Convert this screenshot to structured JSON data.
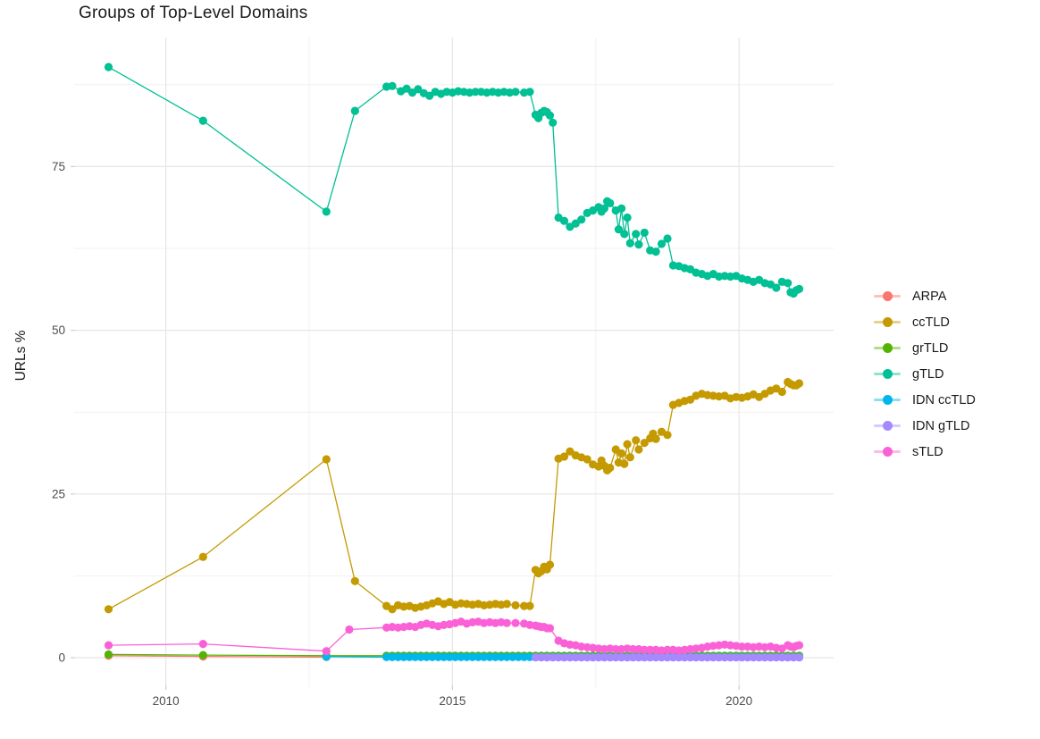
{
  "page": {
    "background": "#ffffff"
  },
  "chart_data": {
    "type": "line",
    "title": "Groups of Top-Level Domains",
    "xlabel": "",
    "ylabel": "URLs %",
    "xlim": [
      2008.4,
      2021.65
    ],
    "ylim": [
      -4.5,
      94.7
    ],
    "x_ticks": [
      {
        "value": 2010,
        "label": "2010"
      },
      {
        "value": 2015,
        "label": "2015"
      },
      {
        "value": 2020,
        "label": "2020"
      }
    ],
    "x_minor": [
      2012.5,
      2017.5
    ],
    "y_ticks": [
      {
        "value": 0,
        "label": "0"
      },
      {
        "value": 25,
        "label": "25"
      },
      {
        "value": 50,
        "label": "50"
      },
      {
        "value": 75,
        "label": "75"
      }
    ],
    "y_minor": [
      12.5,
      37.5,
      62.5,
      87.5
    ],
    "grid": {
      "on": true,
      "major_color": "#e6e6e6",
      "minor_color": "#f1f1f1",
      "tick_color": "#cfcfcf"
    },
    "text_colors": {
      "title": "#1a1a1a",
      "ticks": "#4d4d4d",
      "axis_title": "#1a1a1a",
      "legend": "#1a1a1a"
    },
    "legend": {
      "position": "right",
      "title": ""
    },
    "series": [
      {
        "name": "ARPA",
        "color": "#F8766D",
        "points": [
          [
            2009,
            0.3
          ],
          [
            2010.65,
            0.2
          ],
          [
            2012.8,
            0.1
          ]
        ]
      },
      {
        "name": "ccTLD",
        "color": "#C49A00",
        "points": [
          [
            2009,
            7.4
          ],
          [
            2010.65,
            15.4
          ],
          [
            2012.8,
            30.3
          ],
          [
            2013.3,
            11.7
          ],
          [
            2013.85,
            7.9
          ],
          [
            2013.95,
            7.4
          ],
          [
            2014.05,
            8
          ],
          [
            2014.15,
            7.8
          ],
          [
            2014.25,
            7.9
          ],
          [
            2014.35,
            7.6
          ],
          [
            2014.45,
            7.8
          ],
          [
            2014.55,
            8
          ],
          [
            2014.65,
            8.3
          ],
          [
            2014.75,
            8.6
          ],
          [
            2014.85,
            8.2
          ],
          [
            2014.95,
            8.5
          ],
          [
            2015.05,
            8.1
          ],
          [
            2015.15,
            8.3
          ],
          [
            2015.25,
            8.2
          ],
          [
            2015.35,
            8.1
          ],
          [
            2015.45,
            8.2
          ],
          [
            2015.55,
            8
          ],
          [
            2015.65,
            8.1
          ],
          [
            2015.75,
            8.2
          ],
          [
            2015.85,
            8.1
          ],
          [
            2015.95,
            8.2
          ],
          [
            2016.1,
            8
          ],
          [
            2016.25,
            7.9
          ],
          [
            2016.35,
            7.9
          ],
          [
            2016.45,
            13.4
          ],
          [
            2016.5,
            12.9
          ],
          [
            2016.55,
            13.2
          ],
          [
            2016.6,
            13.9
          ],
          [
            2016.65,
            13.5
          ],
          [
            2016.7,
            14.2
          ],
          [
            2016.85,
            30.4
          ],
          [
            2016.95,
            30.7
          ],
          [
            2017.05,
            31.5
          ],
          [
            2017.15,
            30.9
          ],
          [
            2017.25,
            30.6
          ],
          [
            2017.35,
            30.3
          ],
          [
            2017.45,
            29.5
          ],
          [
            2017.55,
            29.2
          ],
          [
            2017.6,
            30.1
          ],
          [
            2017.65,
            29.3
          ],
          [
            2017.7,
            28.6
          ],
          [
            2017.75,
            29
          ],
          [
            2017.85,
            31.8
          ],
          [
            2017.9,
            29.8
          ],
          [
            2017.95,
            31.2
          ],
          [
            2018,
            29.6
          ],
          [
            2018.05,
            32.6
          ],
          [
            2018.1,
            30.6
          ],
          [
            2018.2,
            33.2
          ],
          [
            2018.25,
            31.8
          ],
          [
            2018.35,
            32.8
          ],
          [
            2018.45,
            33.5
          ],
          [
            2018.5,
            34.2
          ],
          [
            2018.55,
            33.4
          ],
          [
            2018.65,
            34.5
          ],
          [
            2018.75,
            34
          ],
          [
            2018.85,
            38.6
          ],
          [
            2018.95,
            38.9
          ],
          [
            2019.05,
            39.2
          ],
          [
            2019.15,
            39.4
          ],
          [
            2019.25,
            40
          ],
          [
            2019.35,
            40.3
          ],
          [
            2019.45,
            40.1
          ],
          [
            2019.55,
            40
          ],
          [
            2019.65,
            39.9
          ],
          [
            2019.75,
            40
          ],
          [
            2019.85,
            39.6
          ],
          [
            2019.95,
            39.8
          ],
          [
            2020.05,
            39.7
          ],
          [
            2020.15,
            39.9
          ],
          [
            2020.25,
            40.2
          ],
          [
            2020.35,
            39.8
          ],
          [
            2020.45,
            40.3
          ],
          [
            2020.55,
            40.8
          ],
          [
            2020.65,
            41.1
          ],
          [
            2020.75,
            40.6
          ],
          [
            2020.85,
            42.1
          ],
          [
            2020.9,
            41.8
          ],
          [
            2020.95,
            41.6
          ],
          [
            2021,
            41.6
          ],
          [
            2021.05,
            41.9
          ]
        ]
      },
      {
        "name": "grTLD",
        "color": "#53B400",
        "points": [
          [
            2009,
            0.5
          ],
          [
            2010.65,
            0.4
          ],
          [
            2012.8,
            0.3
          ]
        ],
        "flat": {
          "from": 2013.85,
          "to": 2021.05,
          "step": 0.1,
          "value": 0.3
        }
      },
      {
        "name": "gTLD",
        "color": "#00C094",
        "points": [
          [
            2009,
            90.2
          ],
          [
            2010.65,
            82
          ],
          [
            2012.8,
            68.1
          ],
          [
            2013.3,
            83.5
          ],
          [
            2013.85,
            87.2
          ],
          [
            2013.95,
            87.3
          ],
          [
            2014.1,
            86.5
          ],
          [
            2014.2,
            86.9
          ],
          [
            2014.3,
            86.3
          ],
          [
            2014.4,
            86.8
          ],
          [
            2014.5,
            86.2
          ],
          [
            2014.6,
            85.8
          ],
          [
            2014.7,
            86.4
          ],
          [
            2014.8,
            86.1
          ],
          [
            2014.9,
            86.4
          ],
          [
            2015,
            86.3
          ],
          [
            2015.1,
            86.5
          ],
          [
            2015.2,
            86.4
          ],
          [
            2015.3,
            86.3
          ],
          [
            2015.4,
            86.4
          ],
          [
            2015.5,
            86.4
          ],
          [
            2015.6,
            86.3
          ],
          [
            2015.7,
            86.4
          ],
          [
            2015.8,
            86.3
          ],
          [
            2015.9,
            86.4
          ],
          [
            2016,
            86.3
          ],
          [
            2016.1,
            86.4
          ],
          [
            2016.25,
            86.3
          ],
          [
            2016.35,
            86.4
          ],
          [
            2016.45,
            82.9
          ],
          [
            2016.5,
            82.4
          ],
          [
            2016.55,
            83.2
          ],
          [
            2016.6,
            83.5
          ],
          [
            2016.65,
            83.3
          ],
          [
            2016.7,
            82.8
          ],
          [
            2016.75,
            81.7
          ],
          [
            2016.85,
            67.2
          ],
          [
            2016.95,
            66.7
          ],
          [
            2017.05,
            65.8
          ],
          [
            2017.15,
            66.3
          ],
          [
            2017.25,
            66.9
          ],
          [
            2017.35,
            67.9
          ],
          [
            2017.45,
            68.3
          ],
          [
            2017.55,
            68.8
          ],
          [
            2017.6,
            68.1
          ],
          [
            2017.65,
            68.6
          ],
          [
            2017.7,
            69.7
          ],
          [
            2017.75,
            69.4
          ],
          [
            2017.85,
            68.3
          ],
          [
            2017.9,
            65.4
          ],
          [
            2017.95,
            68.6
          ],
          [
            2018,
            64.7
          ],
          [
            2018.05,
            67.2
          ],
          [
            2018.1,
            63.3
          ],
          [
            2018.2,
            64.7
          ],
          [
            2018.25,
            63.1
          ],
          [
            2018.35,
            64.9
          ],
          [
            2018.45,
            62.2
          ],
          [
            2018.55,
            62
          ],
          [
            2018.65,
            63.2
          ],
          [
            2018.75,
            64
          ],
          [
            2018.85,
            59.9
          ],
          [
            2018.95,
            59.8
          ],
          [
            2019.05,
            59.5
          ],
          [
            2019.15,
            59.3
          ],
          [
            2019.25,
            58.8
          ],
          [
            2019.35,
            58.6
          ],
          [
            2019.45,
            58.3
          ],
          [
            2019.55,
            58.6
          ],
          [
            2019.65,
            58.2
          ],
          [
            2019.75,
            58.3
          ],
          [
            2019.85,
            58.2
          ],
          [
            2019.95,
            58.3
          ],
          [
            2020.05,
            57.9
          ],
          [
            2020.15,
            57.7
          ],
          [
            2020.25,
            57.4
          ],
          [
            2020.35,
            57.7
          ],
          [
            2020.45,
            57.2
          ],
          [
            2020.55,
            57
          ],
          [
            2020.65,
            56.5
          ],
          [
            2020.75,
            57.4
          ],
          [
            2020.85,
            57.2
          ],
          [
            2020.9,
            55.8
          ],
          [
            2020.95,
            55.6
          ],
          [
            2021,
            56.1
          ],
          [
            2021.05,
            56.3
          ]
        ]
      },
      {
        "name": "IDN ccTLD",
        "color": "#00B6EB",
        "points": [
          [
            2012.8,
            0.15
          ]
        ],
        "flat": {
          "from": 2013.85,
          "to": 2021.05,
          "step": 0.1,
          "value": 0.1
        }
      },
      {
        "name": "IDN gTLD",
        "color": "#A58AFF",
        "points": [],
        "flat": {
          "from": 2016.45,
          "to": 2021.05,
          "step": 0.1,
          "value": 0.05
        }
      },
      {
        "name": "sTLD",
        "color": "#FB61D7",
        "points": [
          [
            2009,
            1.9
          ],
          [
            2010.65,
            2.1
          ],
          [
            2012.8,
            1
          ],
          [
            2013.2,
            4.3
          ],
          [
            2013.85,
            4.6
          ],
          [
            2013.95,
            4.7
          ],
          [
            2014.05,
            4.6
          ],
          [
            2014.15,
            4.7
          ],
          [
            2014.25,
            4.8
          ],
          [
            2014.35,
            4.7
          ],
          [
            2014.45,
            5
          ],
          [
            2014.55,
            5.2
          ],
          [
            2014.65,
            5
          ],
          [
            2014.75,
            4.8
          ],
          [
            2014.85,
            5
          ],
          [
            2014.95,
            5.1
          ],
          [
            2015.05,
            5.3
          ],
          [
            2015.15,
            5.5
          ],
          [
            2015.25,
            5.2
          ],
          [
            2015.35,
            5.4
          ],
          [
            2015.45,
            5.5
          ],
          [
            2015.55,
            5.3
          ],
          [
            2015.65,
            5.4
          ],
          [
            2015.75,
            5.3
          ],
          [
            2015.85,
            5.4
          ],
          [
            2015.95,
            5.3
          ],
          [
            2016.1,
            5.3
          ],
          [
            2016.25,
            5.2
          ],
          [
            2016.35,
            5
          ],
          [
            2016.45,
            4.9
          ],
          [
            2016.5,
            4.8
          ],
          [
            2016.55,
            4.7
          ],
          [
            2016.6,
            4.7
          ],
          [
            2016.65,
            4.5
          ],
          [
            2016.7,
            4.5
          ],
          [
            2016.85,
            2.6
          ],
          [
            2016.95,
            2.2
          ],
          [
            2017.05,
            2
          ],
          [
            2017.15,
            1.9
          ],
          [
            2017.25,
            1.7
          ],
          [
            2017.35,
            1.6
          ],
          [
            2017.45,
            1.5
          ],
          [
            2017.55,
            1.4
          ],
          [
            2017.65,
            1.3
          ],
          [
            2017.75,
            1.4
          ],
          [
            2017.85,
            1.3
          ],
          [
            2017.95,
            1.3
          ],
          [
            2018.05,
            1.4
          ],
          [
            2018.15,
            1.3
          ],
          [
            2018.25,
            1.3
          ],
          [
            2018.35,
            1.2
          ],
          [
            2018.45,
            1.2
          ],
          [
            2018.55,
            1.2
          ],
          [
            2018.65,
            1.1
          ],
          [
            2018.75,
            1.2
          ],
          [
            2018.85,
            1.2
          ],
          [
            2018.95,
            1.1
          ],
          [
            2019.05,
            1.2
          ],
          [
            2019.15,
            1.3
          ],
          [
            2019.25,
            1.4
          ],
          [
            2019.35,
            1.5
          ],
          [
            2019.45,
            1.7
          ],
          [
            2019.55,
            1.8
          ],
          [
            2019.65,
            1.9
          ],
          [
            2019.75,
            2
          ],
          [
            2019.85,
            1.9
          ],
          [
            2019.95,
            1.8
          ],
          [
            2020.05,
            1.7
          ],
          [
            2020.15,
            1.7
          ],
          [
            2020.25,
            1.6
          ],
          [
            2020.35,
            1.7
          ],
          [
            2020.45,
            1.6
          ],
          [
            2020.55,
            1.7
          ],
          [
            2020.65,
            1.5
          ],
          [
            2020.75,
            1.4
          ],
          [
            2020.85,
            1.9
          ],
          [
            2020.9,
            1.7
          ],
          [
            2020.95,
            1.6
          ],
          [
            2021,
            1.8
          ],
          [
            2021.05,
            1.9
          ]
        ]
      }
    ]
  }
}
